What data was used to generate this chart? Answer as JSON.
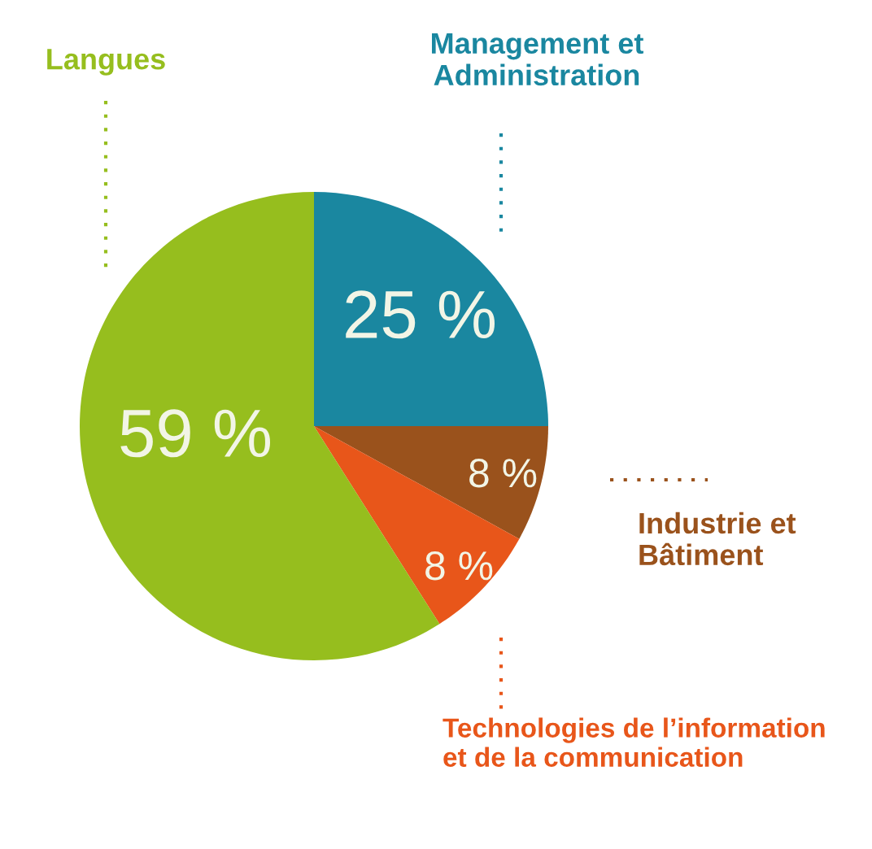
{
  "chart_data": {
    "type": "pie",
    "categories": [
      "Management et\nAdministration",
      "Industrie et\nBâtiment",
      "Technologies de l’information\net de la communication",
      "Langues"
    ],
    "values": [
      25,
      8,
      8,
      59
    ],
    "colors": [
      "#1a87a0",
      "#9a521c",
      "#e8561a",
      "#96be1e"
    ],
    "value_labels": [
      "25 %",
      "8 %",
      "8 %",
      "59 %"
    ]
  }
}
